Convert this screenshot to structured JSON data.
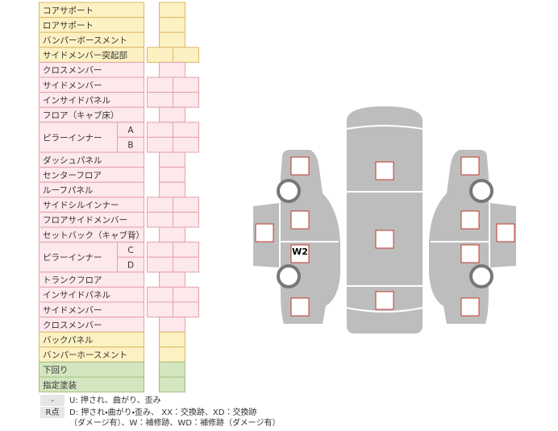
{
  "table": {
    "rows": [
      {
        "label": "コアサポート",
        "color": "#fcf1c2",
        "border": "#d9b867",
        "split": false
      },
      {
        "label": "ロアサポート",
        "color": "#fcf1c2",
        "border": "#d9b867",
        "split": false
      },
      {
        "label": "バンパーボースメント",
        "color": "#fcf1c2",
        "border": "#d9b867",
        "split": false
      },
      {
        "label": "サイドメンバー突起部",
        "color": "#fcf1c2",
        "border": "#d9b867",
        "split": true
      },
      {
        "label": "クロスメンバー",
        "color": "#fde8ec",
        "border": "#e3a1aa",
        "split": false
      },
      {
        "label": "サイドメンバー",
        "color": "#fde8ec",
        "border": "#e3a1aa",
        "split": true
      },
      {
        "label": "インサイドパネル",
        "color": "#fde8ec",
        "border": "#e3a1aa",
        "split": true
      },
      {
        "label": "フロア（キャブ床）",
        "color": "#fde8ec",
        "border": "#e3a1aa",
        "split": false
      },
      {
        "label": "ピラーインナー",
        "color": "#fde8ec",
        "border": "#e3a1aa",
        "split": true,
        "sub": [
          "A",
          "B"
        ]
      },
      {
        "label": "ダッシュパネル",
        "color": "#fde8ec",
        "border": "#e3a1aa",
        "split": false
      },
      {
        "label": "センターフロア",
        "color": "#fde8ec",
        "border": "#e3a1aa",
        "split": false
      },
      {
        "label": "ルーフパネル",
        "color": "#fde8ec",
        "border": "#e3a1aa",
        "split": false
      },
      {
        "label": "サイドシルインナー",
        "color": "#fde8ec",
        "border": "#e3a1aa",
        "split": true
      },
      {
        "label": "フロアサイドメンバー",
        "color": "#fde8ec",
        "border": "#e3a1aa",
        "split": true
      },
      {
        "label": "セットバック（キャブ背）",
        "color": "#fde8ec",
        "border": "#e3a1aa",
        "split": false
      },
      {
        "label": "ピラーインナー",
        "color": "#fde8ec",
        "border": "#e3a1aa",
        "split": true,
        "sub": [
          "C",
          "D"
        ]
      },
      {
        "label": "トランクフロア",
        "color": "#fde8ec",
        "border": "#e3a1aa",
        "split": false
      },
      {
        "label": "インサイドパネル",
        "color": "#fde8ec",
        "border": "#e3a1aa",
        "split": true
      },
      {
        "label": "サイドメンバー",
        "color": "#fde8ec",
        "border": "#e3a1aa",
        "split": true
      },
      {
        "label": "クロスメンバー",
        "color": "#fde8ec",
        "border": "#e3a1aa",
        "split": false
      },
      {
        "label": "バックパネル",
        "color": "#fcf1c2",
        "border": "#d9b867",
        "split": false
      },
      {
        "label": "バンパーホースメント",
        "color": "#fcf1c2",
        "border": "#d9b867",
        "split": false
      },
      {
        "label": "下回り",
        "color": "#d4e6bf",
        "border": "#9fbf7f",
        "split": false
      },
      {
        "label": "指定塗装",
        "color": "#d4e6bf",
        "border": "#9fbf7f",
        "split": false
      }
    ]
  },
  "legend": [
    {
      "key": "-",
      "lines": [
        "U: 押され、曲がり、歪み"
      ]
    },
    {
      "key": "R点",
      "lines": [
        "D: 押され・曲がり・歪み、 XX：交換跡、XD：交換跡",
        "（ダメージ有）、W：補修跡、WD：補修跡（ダメージ有）"
      ]
    }
  ],
  "diagram": {
    "marks": [
      "W2"
    ]
  }
}
